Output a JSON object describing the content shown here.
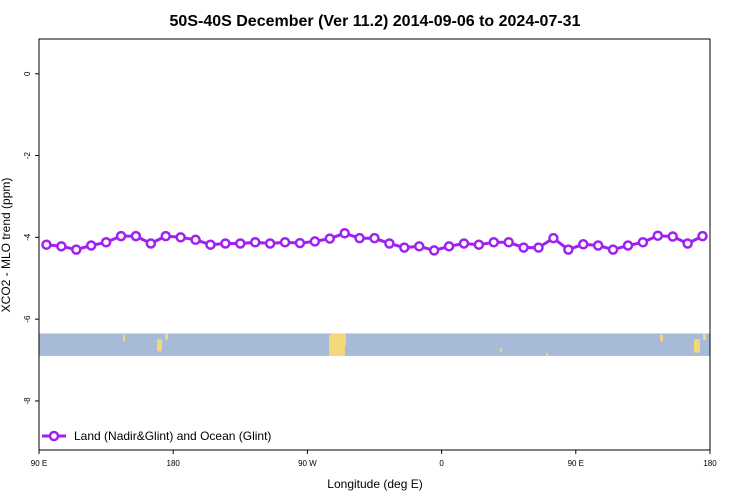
{
  "chart_data": {
    "type": "line",
    "title": "50S-40S December (Ver 11.2)   2014-09-06 to 2024-07-31",
    "xlabel": "Longitude (deg E)",
    "ylabel": "XCO2 - MLO trend (ppm)",
    "x_ticks": [
      {
        "value": 90,
        "label": "90 E"
      },
      {
        "value": 180,
        "label": "180"
      },
      {
        "value": 270,
        "label": "90 W"
      },
      {
        "value": 360,
        "label": "0"
      },
      {
        "value": 450,
        "label": "90 E"
      },
      {
        "value": 540,
        "label": "180"
      }
    ],
    "y_ticks": [
      0,
      -2,
      -4,
      -6,
      -8
    ],
    "xlim": [
      90,
      540
    ],
    "ylim": [
      -9.2,
      0.85
    ],
    "series": [
      {
        "name": "Land (Nadir&Glint) and Ocean (Glint)",
        "color": "#a020f0",
        "x": [
          95,
          105,
          115,
          125,
          135,
          145,
          155,
          165,
          175,
          185,
          195,
          205,
          215,
          225,
          235,
          245,
          255,
          265,
          275,
          285,
          295,
          305,
          315,
          325,
          335,
          345,
          355,
          365,
          375,
          385,
          395,
          405,
          415,
          425,
          435,
          445,
          455,
          465,
          475,
          485,
          495,
          505,
          515,
          525,
          535
        ],
        "y": [
          -4.18,
          -4.22,
          -4.3,
          -4.2,
          -4.12,
          -3.97,
          -3.97,
          -4.15,
          -3.97,
          -4.0,
          -4.06,
          -4.18,
          -4.15,
          -4.15,
          -4.12,
          -4.15,
          -4.12,
          -4.14,
          -4.1,
          -4.03,
          -3.9,
          -4.02,
          -4.02,
          -4.15,
          -4.25,
          -4.22,
          -4.32,
          -4.22,
          -4.15,
          -4.18,
          -4.12,
          -4.12,
          -4.25,
          -4.25,
          -4.02,
          -4.3,
          -4.17,
          -4.2,
          -4.3,
          -4.2,
          -4.12,
          -3.96,
          -3.98,
          -4.15,
          -3.97
        ]
      }
    ],
    "map_strip": {
      "y_range": [
        -6.9,
        -6.35
      ],
      "ocean_color": "#a7bbd8",
      "land_color": "#f4d77c"
    },
    "legend_position": "bottom-left",
    "grid": false
  }
}
